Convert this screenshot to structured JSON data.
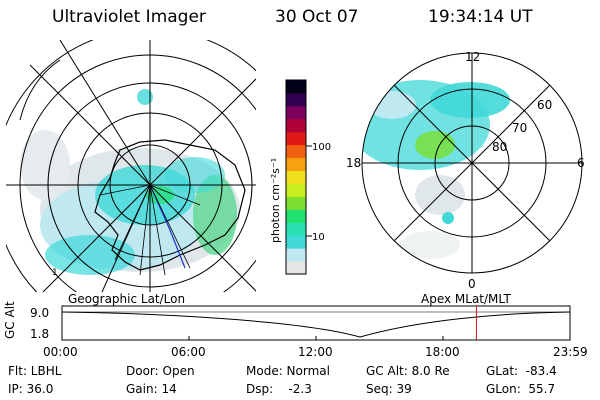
{
  "header": {
    "instrument": "Ultraviolet Imager",
    "date": "30 Oct 07",
    "time": "19:34:14 UT"
  },
  "colorbar": {
    "unit_label": "photon cm⁻²s⁻¹",
    "ticks": [
      "100",
      "10"
    ],
    "colors": [
      "#e5e5e5",
      "#bfe8f0",
      "#40d8d8",
      "#29e0b0",
      "#22e070",
      "#7be030",
      "#c8ee20",
      "#f0e020",
      "#f8a010",
      "#f06010",
      "#e01818",
      "#b00038",
      "#800060",
      "#300050",
      "#000018"
    ]
  },
  "left_panel": {
    "caption": "Geographic Lat/Lon",
    "marker_1": "1"
  },
  "right_panel": {
    "caption": "Apex MLat/MLT",
    "mlt_labels": {
      "top": "12",
      "left": "18",
      "right": "6",
      "bottom": "0"
    },
    "lat_labels": [
      "60",
      "70",
      "80"
    ]
  },
  "timeline": {
    "axis_label": "GC Alt",
    "y_ticks": [
      "9.0",
      "1.8"
    ],
    "x_ticks": [
      "00:00",
      "06:00",
      "12:00",
      "18:00",
      "23:59"
    ],
    "current_time_fraction": 0.8158,
    "marker_color": "#d01010"
  },
  "status": {
    "flt": "Flt: LBHL",
    "ip": "IP: 36.0",
    "door": "Door: Open",
    "gain": "Gain: 14",
    "mode": "Mode: Normal",
    "dsp": "Dsp:    -2.3",
    "gc_alt": "GC Alt: 8.0 Re",
    "seq": "Seq: 39",
    "glat": "GLat:  -83.4",
    "glon": "GLon:  55.7"
  }
}
